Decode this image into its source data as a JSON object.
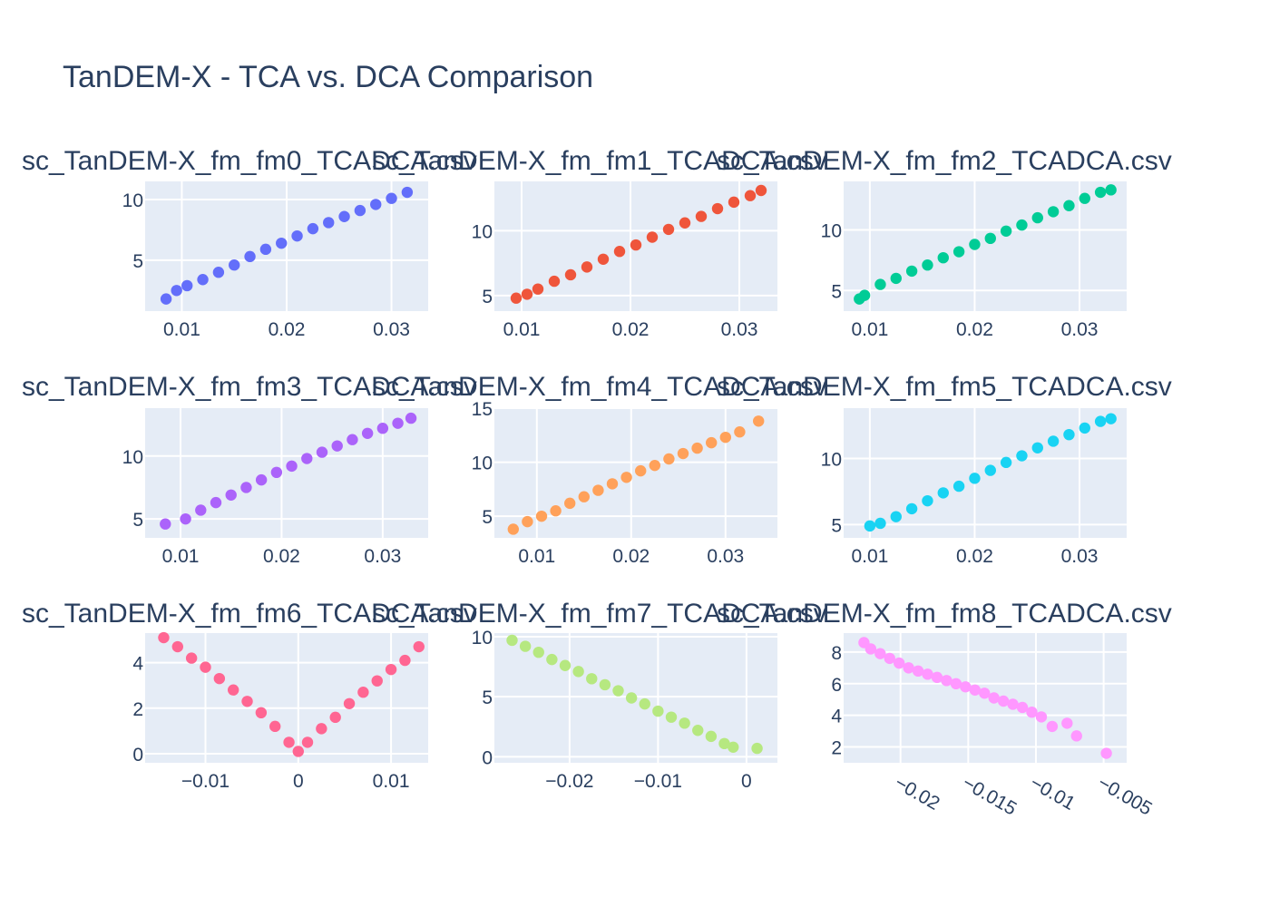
{
  "title": "TanDEM-X - TCA vs. DCA Comparison",
  "chart_data": [
    {
      "type": "scatter",
      "title": "sc_TanDEM-X_fm_fm0_TCADCA.csv",
      "color": "#636efa",
      "xlim": [
        0.0065,
        0.0335
      ],
      "ylim": [
        0.8,
        11.5
      ],
      "xticks": [
        0.01,
        0.02,
        0.03
      ],
      "xticklabels": [
        "0.01",
        "0.02",
        "0.03"
      ],
      "yticks": [
        5,
        10
      ],
      "yticklabels": [
        "5",
        "10"
      ],
      "x": [
        0.0085,
        0.0095,
        0.0105,
        0.012,
        0.0135,
        0.015,
        0.0165,
        0.018,
        0.0195,
        0.021,
        0.0225,
        0.024,
        0.0255,
        0.027,
        0.0285,
        0.03,
        0.0315
      ],
      "y": [
        1.8,
        2.5,
        2.9,
        3.4,
        4.0,
        4.6,
        5.3,
        5.9,
        6.4,
        7.0,
        7.6,
        8.1,
        8.6,
        9.1,
        9.6,
        10.1,
        10.6
      ]
    },
    {
      "type": "scatter",
      "title": "sc_TanDEM-X_fm_fm1_TCADCA.csv",
      "color": "#ef553b",
      "xlim": [
        0.0075,
        0.0335
      ],
      "ylim": [
        3.8,
        13.8
      ],
      "xticks": [
        0.01,
        0.02,
        0.03
      ],
      "xticklabels": [
        "0.01",
        "0.02",
        "0.03"
      ],
      "yticks": [
        5,
        10
      ],
      "yticklabels": [
        "5",
        "10"
      ],
      "x": [
        0.0095,
        0.0105,
        0.0115,
        0.013,
        0.0145,
        0.016,
        0.0175,
        0.019,
        0.0205,
        0.022,
        0.0235,
        0.025,
        0.0265,
        0.028,
        0.0295,
        0.031,
        0.032
      ],
      "y": [
        4.8,
        5.1,
        5.5,
        6.1,
        6.6,
        7.2,
        7.8,
        8.4,
        8.9,
        9.5,
        10.1,
        10.6,
        11.1,
        11.7,
        12.2,
        12.7,
        13.1
      ]
    },
    {
      "type": "scatter",
      "title": "sc_TanDEM-X_fm_fm2_TCADCA.csv",
      "color": "#00cc96",
      "xlim": [
        0.0075,
        0.0345
      ],
      "ylim": [
        3.3,
        14.0
      ],
      "xticks": [
        0.01,
        0.02,
        0.03
      ],
      "xticklabels": [
        "0.01",
        "0.02",
        "0.03"
      ],
      "yticks": [
        5,
        10
      ],
      "yticklabels": [
        "5",
        "10"
      ],
      "x": [
        0.009,
        0.0095,
        0.011,
        0.0125,
        0.014,
        0.0155,
        0.017,
        0.0185,
        0.02,
        0.0215,
        0.023,
        0.0245,
        0.026,
        0.0275,
        0.029,
        0.0305,
        0.032,
        0.033
      ],
      "y": [
        4.3,
        4.6,
        5.5,
        6.0,
        6.6,
        7.1,
        7.7,
        8.2,
        8.8,
        9.3,
        9.9,
        10.4,
        11.0,
        11.5,
        12.0,
        12.6,
        13.1,
        13.3
      ]
    },
    {
      "type": "scatter",
      "title": "sc_TanDEM-X_fm_fm3_TCADCA.csv",
      "color": "#ab63fa",
      "xlim": [
        0.0065,
        0.0345
      ],
      "ylim": [
        3.5,
        13.8
      ],
      "xticks": [
        0.01,
        0.02,
        0.03
      ],
      "xticklabels": [
        "0.01",
        "0.02",
        "0.03"
      ],
      "yticks": [
        5,
        10
      ],
      "yticklabels": [
        "5",
        "10"
      ],
      "x": [
        0.0085,
        0.0105,
        0.012,
        0.0135,
        0.015,
        0.0165,
        0.018,
        0.0195,
        0.021,
        0.0225,
        0.024,
        0.0255,
        0.027,
        0.0285,
        0.03,
        0.0315,
        0.0328
      ],
      "y": [
        4.6,
        5.0,
        5.7,
        6.3,
        6.9,
        7.5,
        8.1,
        8.7,
        9.2,
        9.8,
        10.3,
        10.8,
        11.3,
        11.8,
        12.2,
        12.6,
        13.0
      ]
    },
    {
      "type": "scatter",
      "title": "sc_TanDEM-X_fm_fm4_TCADCA.csv",
      "color": "#ffa15a",
      "xlim": [
        0.0055,
        0.0355
      ],
      "ylim": [
        3.0,
        15.0
      ],
      "xticks": [
        0.01,
        0.02,
        0.03
      ],
      "xticklabels": [
        "0.01",
        "0.02",
        "0.03"
      ],
      "yticks": [
        5,
        10,
        15
      ],
      "yticklabels": [
        "5",
        "10",
        "15"
      ],
      "x": [
        0.0075,
        0.009,
        0.0105,
        0.012,
        0.0135,
        0.015,
        0.0165,
        0.018,
        0.0195,
        0.021,
        0.0225,
        0.024,
        0.0255,
        0.027,
        0.0285,
        0.03,
        0.0315,
        0.0335
      ],
      "y": [
        3.8,
        4.5,
        5.0,
        5.5,
        6.2,
        6.8,
        7.4,
        8.0,
        8.6,
        9.2,
        9.7,
        10.3,
        10.8,
        11.3,
        11.8,
        12.3,
        12.8,
        13.8
      ]
    },
    {
      "type": "scatter",
      "title": "sc_TanDEM-X_fm_fm5_TCADCA.csv",
      "color": "#19d3f3",
      "xlim": [
        0.0075,
        0.0345
      ],
      "ylim": [
        4.0,
        13.8
      ],
      "xticks": [
        0.01,
        0.02,
        0.03
      ],
      "xticklabels": [
        "0.01",
        "0.02",
        "0.03"
      ],
      "yticks": [
        5,
        10
      ],
      "yticklabels": [
        "5",
        "10"
      ],
      "x": [
        0.01,
        0.011,
        0.0125,
        0.014,
        0.0155,
        0.017,
        0.0185,
        0.02,
        0.0215,
        0.023,
        0.0245,
        0.026,
        0.0275,
        0.029,
        0.0305,
        0.032,
        0.033
      ],
      "y": [
        4.9,
        5.1,
        5.6,
        6.2,
        6.8,
        7.4,
        7.9,
        8.5,
        9.1,
        9.7,
        10.2,
        10.8,
        11.3,
        11.8,
        12.3,
        12.8,
        13.0
      ]
    },
    {
      "type": "scatter",
      "title": "sc_TanDEM-X_fm_fm6_TCADCA.csv",
      "color": "#ff6692",
      "xlim": [
        -0.0165,
        0.014
      ],
      "ylim": [
        -0.4,
        5.3
      ],
      "xticks": [
        -0.01,
        0,
        0.01
      ],
      "xticklabels": [
        "−0.01",
        "0",
        "0.01"
      ],
      "yticks": [
        0,
        2,
        4
      ],
      "yticklabels": [
        "0",
        "2",
        "4"
      ],
      "x": [
        -0.0145,
        -0.013,
        -0.0115,
        -0.01,
        -0.0085,
        -0.007,
        -0.0055,
        -0.004,
        -0.0025,
        -0.001,
        0.0,
        0.001,
        0.0025,
        0.004,
        0.0055,
        0.007,
        0.0085,
        0.01,
        0.0115,
        0.013
      ],
      "y": [
        5.1,
        4.7,
        4.2,
        3.8,
        3.3,
        2.8,
        2.3,
        1.8,
        1.2,
        0.5,
        0.1,
        0.5,
        1.1,
        1.6,
        2.2,
        2.7,
        3.2,
        3.7,
        4.1,
        4.7
      ]
    },
    {
      "type": "scatter",
      "title": "sc_TanDEM-X_fm_fm7_TCADCA.csv",
      "color": "#b6e880",
      "xlim": [
        -0.0285,
        0.0035
      ],
      "ylim": [
        -0.5,
        10.3
      ],
      "xticks": [
        -0.02,
        -0.01,
        0
      ],
      "xticklabels": [
        "−0.02",
        "−0.01",
        "0"
      ],
      "yticks": [
        0,
        5,
        10
      ],
      "yticklabels": [
        "0",
        "5",
        "10"
      ],
      "x": [
        -0.0265,
        -0.025,
        -0.0235,
        -0.022,
        -0.0205,
        -0.019,
        -0.0175,
        -0.016,
        -0.0145,
        -0.013,
        -0.0115,
        -0.01,
        -0.0085,
        -0.007,
        -0.0055,
        -0.004,
        -0.0025,
        -0.0015,
        0.0012
      ],
      "y": [
        9.7,
        9.2,
        8.7,
        8.1,
        7.6,
        7.1,
        6.5,
        6.0,
        5.5,
        4.9,
        4.4,
        3.8,
        3.3,
        2.8,
        2.2,
        1.7,
        1.1,
        0.8,
        0.7
      ]
    },
    {
      "type": "scatter",
      "title": "sc_TanDEM-X_fm_fm8_TCADCA.csv",
      "color": "#ff97ff",
      "xlim": [
        -0.0242,
        -0.0033
      ],
      "ylim": [
        1.0,
        9.2
      ],
      "xticks": [
        -0.02,
        -0.015,
        -0.01,
        -0.005
      ],
      "xticklabels": [
        "−0.02",
        "−0.015",
        "−0.01",
        "−0.005"
      ],
      "yticks": [
        2,
        4,
        6,
        8
      ],
      "yticklabels": [
        "2",
        "4",
        "6",
        "8"
      ],
      "x": [
        -0.0227,
        -0.0222,
        -0.0215,
        -0.0208,
        -0.0201,
        -0.0194,
        -0.0187,
        -0.018,
        -0.0173,
        -0.0166,
        -0.0159,
        -0.0152,
        -0.0145,
        -0.0138,
        -0.0131,
        -0.0124,
        -0.0117,
        -0.011,
        -0.0103,
        -0.0096,
        -0.0088,
        -0.0077,
        -0.007,
        -0.0048
      ],
      "y": [
        8.6,
        8.2,
        7.9,
        7.6,
        7.3,
        7.0,
        6.8,
        6.6,
        6.4,
        6.2,
        6.0,
        5.8,
        5.6,
        5.4,
        5.1,
        4.9,
        4.7,
        4.5,
        4.2,
        3.9,
        3.3,
        3.5,
        2.7,
        1.6
      ]
    }
  ]
}
